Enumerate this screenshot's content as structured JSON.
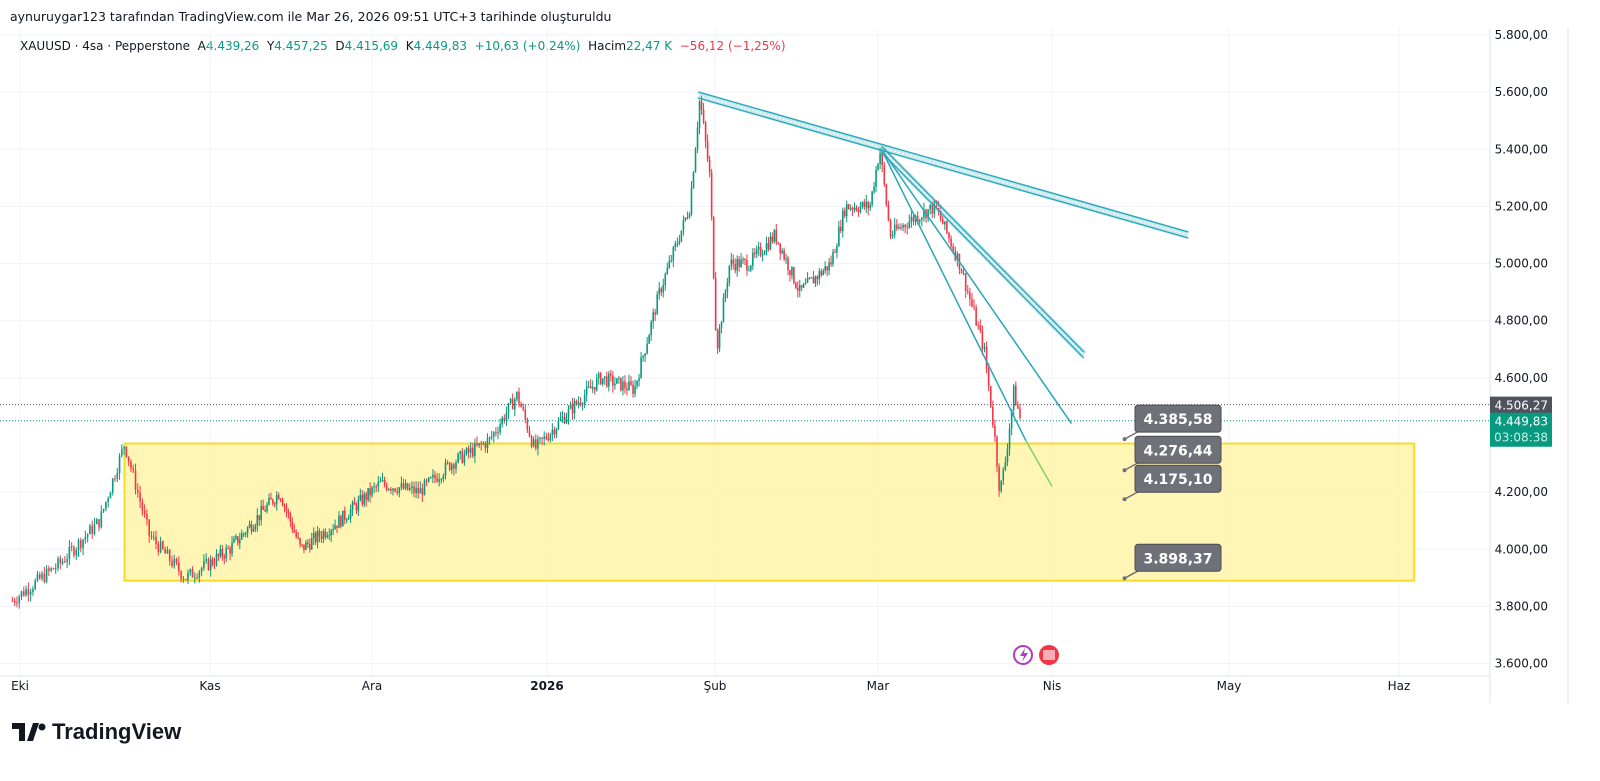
{
  "credit": "aynuruygar123 tarafından TradingView.com ile Mar 26, 2026 09:51 UTC+3 tarihinde oluşturuldu",
  "legend": {
    "symbol": "XAUUSD · 4sa · Pepperstone",
    "o_label": "A",
    "o": "4.439,26",
    "h_label": "Y",
    "h": "4.457,25",
    "l_label": "D",
    "l": "4.415,69",
    "c_label": "K",
    "c": "4.449,83",
    "change": "+10,63 (+0,24%)",
    "vol_label": "Hacim",
    "vol": "22,47 K",
    "vol_change": "−56,12 (−1,25%)"
  },
  "logo": "TradingView",
  "colors": {
    "up": "#089981",
    "down": "#f23645",
    "zone": "#fff3a8",
    "zone_border": "#f5dc2c",
    "trend": "#26a6b8",
    "label_bg": "#6f7178"
  },
  "chart_data": {
    "type": "candlestick",
    "symbol": "XAUUSD",
    "timeframe": "4sa",
    "x_unit": "months since 2025-10-01",
    "x_ticks": [
      {
        "t": 0,
        "label": "Eki"
      },
      {
        "t": 1,
        "label": "Kas"
      },
      {
        "t": 2,
        "label": "Ara"
      },
      {
        "t": 3,
        "label": "2026",
        "bold": true
      },
      {
        "t": 4,
        "label": "Şub"
      },
      {
        "t": 5,
        "label": "Mar"
      },
      {
        "t": 6,
        "label": "Nis"
      },
      {
        "t": 7,
        "label": "May"
      },
      {
        "t": 8,
        "label": "Haz"
      }
    ],
    "y_ticks": [
      "5.800,00",
      "5.600,00",
      "5.400,00",
      "5.200,00",
      "5.000,00",
      "4.800,00",
      "4.600,00",
      "4.200,00",
      "4.000,00",
      "3.800,00",
      "3.600,00"
    ],
    "y_tick_values": [
      5800,
      5600,
      5400,
      5200,
      5000,
      4800,
      4600,
      4200,
      4000,
      3800,
      3600
    ],
    "ylim": [
      3600,
      5800
    ],
    "xlim": [
      -0.05,
      8.5
    ],
    "price_path": [
      [
        -0.04,
        3820
      ],
      [
        0.21,
        3950
      ],
      [
        0.42,
        4100
      ],
      [
        0.55,
        4370
      ],
      [
        0.68,
        4050
      ],
      [
        0.87,
        3900
      ],
      [
        1.12,
        4000
      ],
      [
        1.43,
        4200
      ],
      [
        1.56,
        4000
      ],
      [
        1.8,
        4100
      ],
      [
        2.05,
        4230
      ],
      [
        2.27,
        4200
      ],
      [
        2.45,
        4300
      ],
      [
        2.67,
        4380
      ],
      [
        2.83,
        4540
      ],
      [
        2.93,
        4350
      ],
      [
        3.08,
        4450
      ],
      [
        3.32,
        4600
      ],
      [
        3.52,
        4560
      ],
      [
        3.67,
        4900
      ],
      [
        3.85,
        5200
      ],
      [
        3.91,
        5580
      ],
      [
        3.97,
        5300
      ],
      [
        4.01,
        4700
      ],
      [
        4.09,
        5000
      ],
      [
        4.21,
        5000
      ],
      [
        4.37,
        5100
      ],
      [
        4.52,
        4900
      ],
      [
        4.71,
        5000
      ],
      [
        4.8,
        5200
      ],
      [
        4.95,
        5200
      ],
      [
        5.01,
        5400
      ],
      [
        5.07,
        5100
      ],
      [
        5.18,
        5150
      ],
      [
        5.33,
        5200
      ],
      [
        5.47,
        5000
      ],
      [
        5.61,
        4700
      ],
      [
        5.67,
        4400
      ],
      [
        5.7,
        4200
      ],
      [
        5.73,
        4300
      ],
      [
        5.78,
        4550
      ],
      [
        5.82,
        4450
      ]
    ],
    "zone": {
      "t1": 0.55,
      "t2": 8.09,
      "p1": 4370,
      "p2": 3890
    },
    "trendlines": [
      {
        "kind": "channel",
        "t1": 3.9,
        "p1": 5590,
        "t2": 6.77,
        "p2": 5100
      },
      {
        "kind": "channel",
        "t1": 5.02,
        "p1": 5400,
        "t2": 6.18,
        "p2": 4680
      },
      {
        "kind": "line",
        "t1": 5.02,
        "p1": 5400,
        "t2": 6.11,
        "p2": 4440
      },
      {
        "kind": "line",
        "t1": 5.02,
        "p1": 5400,
        "t2": 5.85,
        "p2": 4380
      },
      {
        "kind": "green",
        "t1": 5.85,
        "p1": 4380,
        "t2": 6.0,
        "p2": 4220
      }
    ],
    "price_labels": [
      {
        "text": "4.385,58",
        "price": 4385.58
      },
      {
        "text": "4.276,44",
        "price": 4276.44
      },
      {
        "text": "4.175,10",
        "price": 4175.1
      },
      {
        "text": "3.898,37",
        "price": 3898.37
      }
    ],
    "hlines": [
      {
        "price": 4506.27,
        "text": "4.506,27",
        "color": "#50535e"
      },
      {
        "price": 4449.83,
        "text": "4.449,83",
        "sub": "03:08:38",
        "color": "#089981"
      }
    ]
  }
}
